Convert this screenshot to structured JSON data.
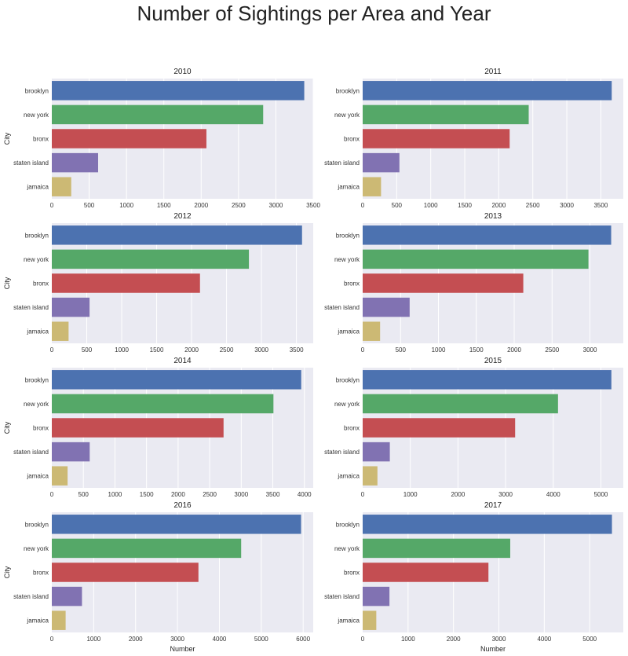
{
  "suptitle": "Number of Sightings per Area and Year",
  "colors": [
    "#4c72b0",
    "#55a868",
    "#c44e52",
    "#8172b2",
    "#ccb974"
  ],
  "plot_background": "#eaeaf2",
  "chart_data": [
    {
      "type": "bar",
      "title": "2010",
      "categories": [
        "brooklyn",
        "new york",
        "bronx",
        "staten island",
        "jamaica"
      ],
      "values": [
        3380,
        2830,
        2070,
        620,
        260
      ],
      "xticks": [
        0,
        500,
        1000,
        1500,
        2000,
        2500,
        3000,
        3500
      ],
      "xlim": [
        0,
        3500
      ],
      "ylabel": "City",
      "xlabel": ""
    },
    {
      "type": "bar",
      "title": "2011",
      "categories": [
        "brooklyn",
        "new york",
        "bronx",
        "staten island",
        "jamaica"
      ],
      "values": [
        3660,
        2440,
        2160,
        540,
        270
      ],
      "xticks": [
        0,
        500,
        1000,
        1500,
        2000,
        2500,
        3000,
        3500
      ],
      "xlim": [
        0,
        3830
      ],
      "ylabel": "",
      "xlabel": ""
    },
    {
      "type": "bar",
      "title": "2012",
      "categories": [
        "brooklyn",
        "new york",
        "bronx",
        "staten island",
        "jamaica"
      ],
      "values": [
        3580,
        2820,
        2120,
        540,
        240
      ],
      "xticks": [
        0,
        500,
        1000,
        1500,
        2000,
        2500,
        3000,
        3500
      ],
      "xlim": [
        0,
        3740
      ],
      "ylabel": "City",
      "xlabel": ""
    },
    {
      "type": "bar",
      "title": "2013",
      "categories": [
        "brooklyn",
        "new york",
        "bronx",
        "staten island",
        "jamaica"
      ],
      "values": [
        3280,
        2980,
        2120,
        620,
        230
      ],
      "xticks": [
        0,
        500,
        1000,
        1500,
        2000,
        2500,
        3000
      ],
      "xlim": [
        0,
        3440
      ],
      "ylabel": "",
      "xlabel": ""
    },
    {
      "type": "bar",
      "title": "2014",
      "categories": [
        "brooklyn",
        "new york",
        "bronx",
        "staten island",
        "jamaica"
      ],
      "values": [
        3950,
        3510,
        2720,
        600,
        250
      ],
      "xticks": [
        0,
        500,
        1000,
        1500,
        2000,
        2500,
        3000,
        3500,
        4000
      ],
      "xlim": [
        0,
        4140
      ],
      "ylabel": "City",
      "xlabel": ""
    },
    {
      "type": "bar",
      "title": "2015",
      "categories": [
        "brooklyn",
        "new york",
        "bronx",
        "staten island",
        "jamaica"
      ],
      "values": [
        5220,
        4100,
        3200,
        570,
        310
      ],
      "xticks": [
        0,
        1000,
        2000,
        3000,
        4000,
        5000
      ],
      "xlim": [
        0,
        5470
      ],
      "ylabel": "",
      "xlabel": ""
    },
    {
      "type": "bar",
      "title": "2016",
      "categories": [
        "brooklyn",
        "new york",
        "bronx",
        "staten island",
        "jamaica"
      ],
      "values": [
        5950,
        4520,
        3500,
        720,
        330
      ],
      "xticks": [
        0,
        1000,
        2000,
        3000,
        4000,
        5000,
        6000
      ],
      "xlim": [
        0,
        6240
      ],
      "ylabel": "City",
      "xlabel": "Number"
    },
    {
      "type": "bar",
      "title": "2017",
      "categories": [
        "brooklyn",
        "new york",
        "bronx",
        "staten island",
        "jamaica"
      ],
      "values": [
        5490,
        3250,
        2770,
        590,
        300
      ],
      "xticks": [
        0,
        1000,
        2000,
        3000,
        4000,
        5000
      ],
      "xlim": [
        0,
        5740
      ],
      "ylabel": "",
      "xlabel": "Number"
    }
  ]
}
